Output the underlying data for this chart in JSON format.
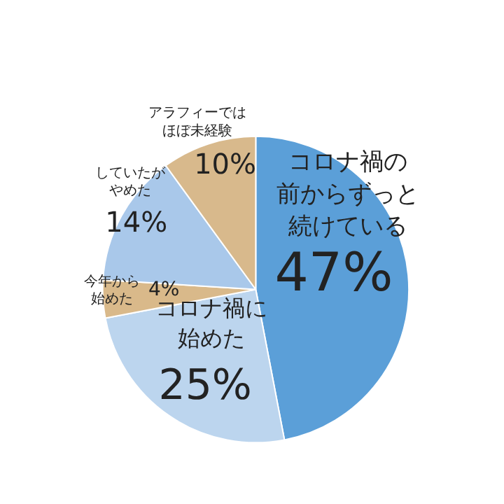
{
  "chart_data": {
    "type": "pie",
    "categories": [
      "コロナ禍の前からずっと続けている",
      "コロナ禍に始めた",
      "今年から始めた",
      "していたがやめた",
      "アラフィーではほぼ未経験"
    ],
    "values": [
      47,
      25,
      4,
      14,
      10
    ],
    "value_labels": [
      "47%",
      "25%",
      "4%",
      "14%",
      "10%"
    ],
    "colors": [
      "#5b9fd8",
      "#bcd5ee",
      "#d9b98a",
      "#a9c8ea",
      "#d8b98c"
    ]
  }
}
